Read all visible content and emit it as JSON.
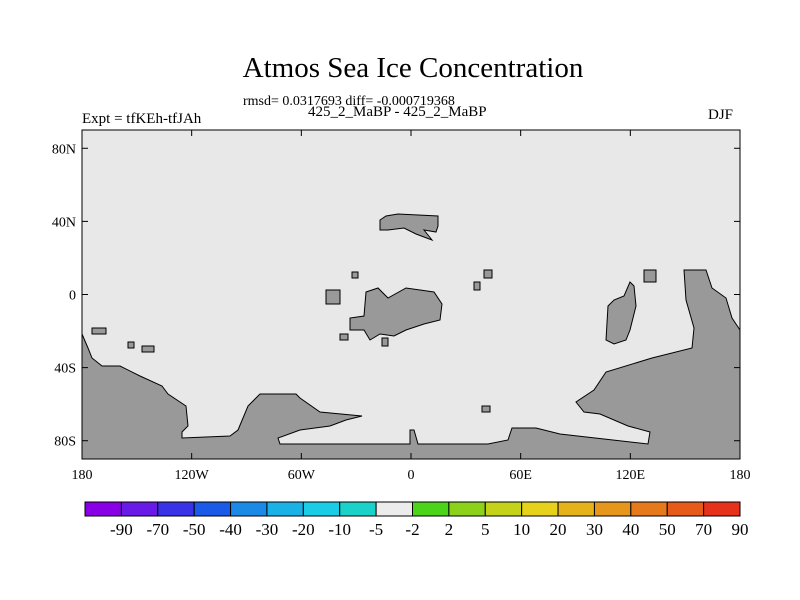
{
  "title": "Atmos Sea Ice Concentration",
  "stats": "rmsd= 0.0317693 diff= -0.000719368",
  "left_label": "Expt = tfKEh-tfJAh",
  "center_label": "425_2_MaBP - 425_2_MaBP",
  "right_label": "DJF",
  "map": {
    "x_ticks": [
      {
        "lon": -180,
        "label": "180"
      },
      {
        "lon": -120,
        "label": "120W"
      },
      {
        "lon": -60,
        "label": "60W"
      },
      {
        "lon": 0,
        "label": "0"
      },
      {
        "lon": 60,
        "label": "60E"
      },
      {
        "lon": 120,
        "label": "120E"
      },
      {
        "lon": 180,
        "label": "180"
      }
    ],
    "y_ticks": [
      {
        "lat": 80,
        "label": "80N"
      },
      {
        "lat": 40,
        "label": "40N"
      },
      {
        "lat": 0,
        "label": "0"
      },
      {
        "lat": -40,
        "label": "40S"
      },
      {
        "lat": -80,
        "label": "80S"
      }
    ],
    "lon_range": [
      -180,
      180
    ],
    "lat_range": [
      -90,
      90
    ],
    "background_color": "#e8e8e8",
    "land_color": "#999999"
  },
  "colorbar": {
    "colors": [
      "#8a00e6",
      "#6a1ae6",
      "#3a32e6",
      "#1a5ae6",
      "#1a8ae6",
      "#1ab2e6",
      "#1acce6",
      "#1ad2c8",
      "#ececec",
      "#4cd41a",
      "#8cd21a",
      "#c4d21a",
      "#e6d21a",
      "#e6b21a",
      "#e6961a",
      "#e67a1a",
      "#e65a1a",
      "#e6321a"
    ],
    "labels": [
      "-90",
      "-70",
      "-50",
      "-40",
      "-30",
      "-20",
      "-10",
      "-5",
      "-2",
      "2",
      "5",
      "10",
      "20",
      "30",
      "40",
      "50",
      "70",
      "90"
    ]
  }
}
